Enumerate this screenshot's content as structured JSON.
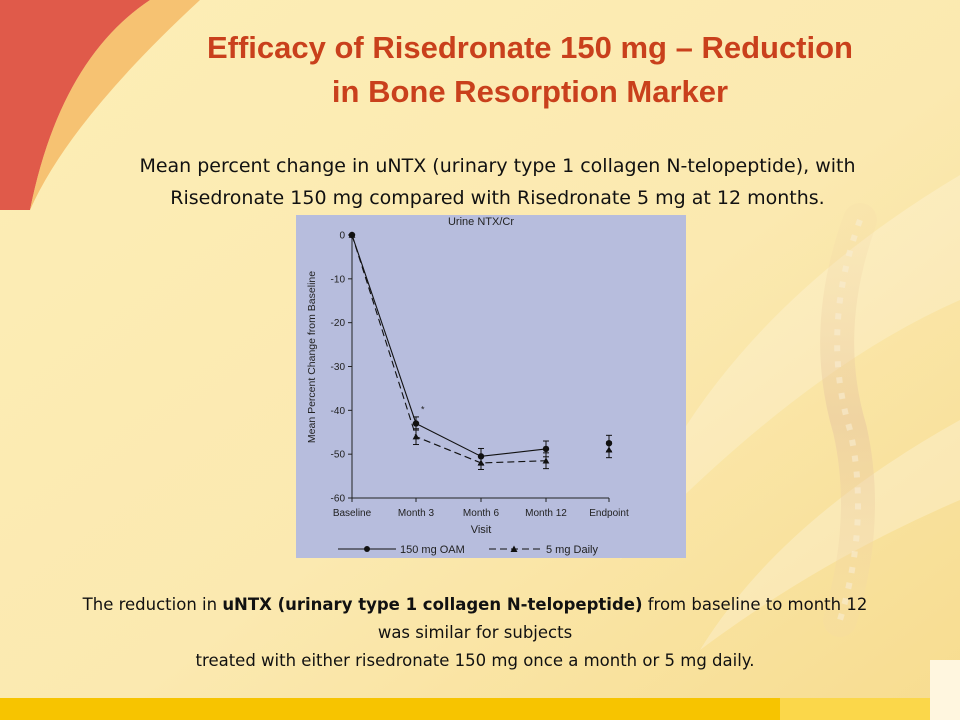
{
  "slide": {
    "title_line1": "Efficacy of Risedronate 150 mg – Reduction",
    "title_line2": "in Bone Resorption Marker",
    "subtitle_line1": "Mean percent change in uNTX (urinary type 1 collagen N-telopeptide), with",
    "subtitle_line2": "Risedronate 150 mg compared with Risedronate 5 mg at 12 months.",
    "caption_pre": "The reduction in ",
    "caption_bold": "uNTX (urinary type 1 collagen N-telopeptide)",
    "caption_post": " from baseline to month 12",
    "caption_line2": "was similar for subjects",
    "caption_line3": "treated with either risedronate 150 mg once a month or 5 mg daily."
  },
  "colors": {
    "title": "#c9401c",
    "chart_background": "#b7bddd",
    "series": "#111111"
  },
  "chart_data": {
    "type": "line",
    "title": "Urine NTX/Cr",
    "xlabel": "Visit",
    "ylabel": "Mean Percent Change from Baseline",
    "categories": [
      "Baseline",
      "Month 3",
      "Month 6",
      "Month 12",
      "Endpoint"
    ],
    "ylim": [
      -60,
      0
    ],
    "yticks": [
      "0",
      "-10",
      "-20",
      "-30",
      "-40",
      "-50",
      "-60"
    ],
    "grid": false,
    "legend_position": "bottom",
    "significance_marker": "*",
    "series": [
      {
        "name": "150 mg OAM",
        "marker": "circle",
        "style": "solid",
        "values": [
          0,
          -43,
          -50.5,
          -48.8,
          -47.5
        ],
        "error": [
          0,
          1.5,
          1.8,
          1.8,
          1.8
        ]
      },
      {
        "name": "5 mg Daily",
        "marker": "triangle",
        "style": "dashed",
        "values": [
          0,
          -46,
          -52,
          -51.5,
          -49
        ],
        "error": [
          0,
          1.8,
          1.5,
          1.8,
          1.8
        ]
      }
    ]
  }
}
